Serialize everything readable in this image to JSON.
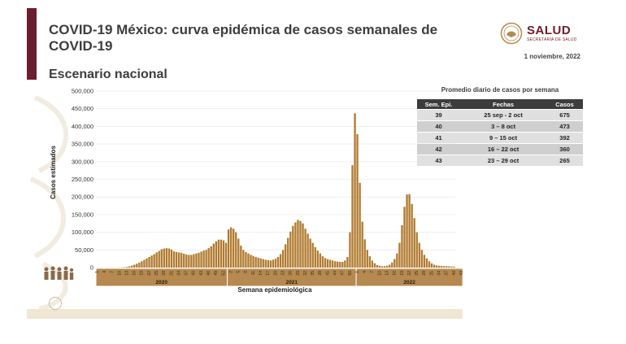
{
  "slide": {
    "title": "COVID-19 México: curva epidémica de casos semanales de COVID-19",
    "subtitle": "Escenario nacional",
    "date": "1 noviembre, 2022",
    "logo": {
      "main": "SALUD",
      "sub": "SECRETARÍA DE SALUD",
      "icon": "eagle-seal-icon"
    },
    "colors": {
      "accent": "#6b1e2e",
      "bars": "#b07a2e",
      "band": "#b5894f"
    }
  },
  "chart_data": {
    "type": "bar",
    "title": "",
    "xlabel": "Semana epidemiológica",
    "ylabel": "Casos estimados",
    "ylim": [
      0,
      500000
    ],
    "yticks": [
      0,
      50000,
      100000,
      150000,
      200000,
      250000,
      300000,
      350000,
      400000,
      450000,
      500000
    ],
    "ytick_labels": [
      "0",
      "50,000",
      "100,000",
      "150,000",
      "200,000",
      "250,000",
      "300,000",
      "350,000",
      "400,000",
      "450,000",
      "500,000"
    ],
    "grid": true,
    "year_bands": [
      {
        "label": "2020",
        "first_week": 1,
        "last_week": 53
      },
      {
        "label": "2021",
        "first_week": 1,
        "last_week": 52
      },
      {
        "label": "2022",
        "first_week": 1,
        "last_week": 43
      }
    ],
    "week_tick_labels": {
      "2020": [
        "1",
        "4",
        "7",
        "10",
        "13",
        "16",
        "19",
        "22",
        "25",
        "28",
        "31",
        "34",
        "37",
        "40",
        "43",
        "46",
        "49",
        "52"
      ],
      "2021": [
        "2",
        "5",
        "8",
        "11",
        "14",
        "17",
        "20",
        "23",
        "26",
        "29",
        "32",
        "35",
        "38",
        "41",
        "44",
        "47",
        "50"
      ],
      "2022": [
        "1",
        "4",
        "7",
        "10",
        "13",
        "16",
        "19",
        "22",
        "25",
        "28",
        "31",
        "34",
        "37",
        "40",
        "43"
      ]
    },
    "series": [
      {
        "values": [
          0,
          0,
          0,
          0,
          0,
          0,
          0,
          0,
          0,
          200,
          500,
          1000,
          2000,
          3500,
          5500,
          8000,
          11000,
          14000,
          18000,
          22000,
          26000,
          30000,
          34000,
          38000,
          43000,
          47000,
          52000,
          54000,
          55000,
          54000,
          51000,
          46000,
          44000,
          43000,
          42000,
          39000,
          37000,
          36000,
          36000,
          38000,
          40000,
          42000,
          45000,
          48000,
          50000,
          55000,
          60000,
          68000,
          74000,
          79000,
          79000,
          77000,
          70000,
          108000,
          114000,
          110000,
          100000,
          82000,
          62000,
          50000,
          44000,
          40000,
          36000,
          33000,
          30000,
          28000,
          26000,
          24000,
          22000,
          21000,
          20000,
          22000,
          25000,
          30000,
          38000,
          50000,
          66000,
          84000,
          102000,
          118000,
          128000,
          135000,
          132000,
          125000,
          110000,
          96000,
          82000,
          70000,
          58000,
          48000,
          40000,
          32000,
          27000,
          24000,
          22000,
          20000,
          18000,
          17000,
          16000,
          16000,
          20000,
          30000,
          100000,
          290000,
          437000,
          378000,
          240000,
          130000,
          80000,
          50000,
          32000,
          20000,
          12000,
          7000,
          5000,
          4000,
          4000,
          5000,
          8000,
          14000,
          24000,
          40000,
          70000,
          120000,
          172000,
          207000,
          208000,
          180000,
          140000,
          100000,
          70000,
          50000,
          36000,
          26000,
          18000,
          12000,
          8000,
          6000,
          5000,
          4500,
          4000,
          3800,
          3500,
          3000,
          2700
        ]
      }
    ]
  },
  "table": {
    "title": "Promedio diario de casos por semana",
    "headers": [
      "Sem. Epi.",
      "Fechas",
      "Casos"
    ],
    "rows": [
      [
        "39",
        "25 sep - 2 oct",
        "675"
      ],
      [
        "40",
        "3 – 8 oct",
        "473"
      ],
      [
        "41",
        "9 – 15 oct",
        "392"
      ],
      [
        "42",
        "16 – 22 oct",
        "360"
      ],
      [
        "43",
        "23 – 29 oct",
        "265"
      ]
    ]
  }
}
